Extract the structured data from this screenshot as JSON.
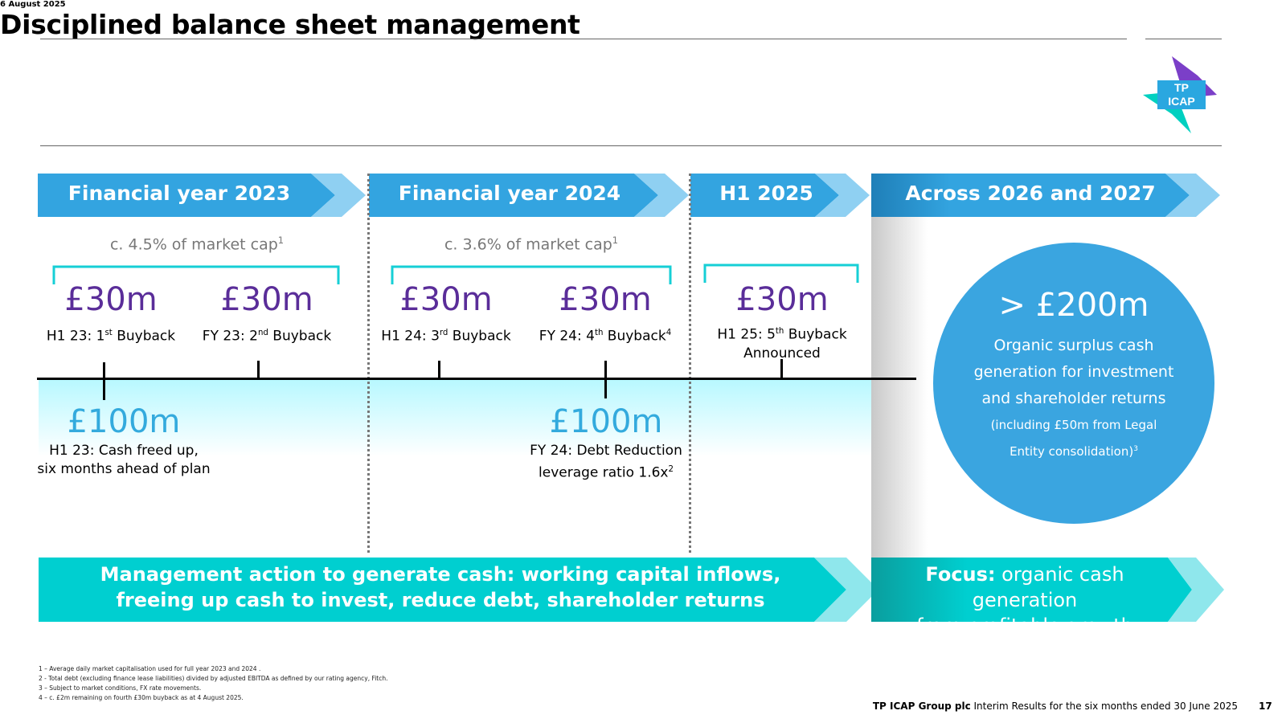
{
  "header": {
    "date": "6 August 2025",
    "title": "Disciplined balance sheet management",
    "logo_text": [
      "TP",
      "ICAP"
    ]
  },
  "periods": [
    {
      "label": "Financial year 2023"
    },
    {
      "label": "Financial year 2024"
    },
    {
      "label": "H1 2025"
    },
    {
      "label": "Across 2026 and 2027"
    }
  ],
  "market_cap": {
    "fy23": {
      "text": "c. 4.5% of market cap",
      "sup": "1"
    },
    "fy24": {
      "text": "c. 3.6% of market cap",
      "sup": "1"
    }
  },
  "buybacks": [
    {
      "amount": "£30m",
      "label": "H1 23: 1",
      "sup": "st",
      "rest": " Buyback"
    },
    {
      "amount": "£30m",
      "label": "FY 23: 2",
      "sup": "nd",
      "rest": " Buyback"
    },
    {
      "amount": "£30m",
      "label": "H1 24: 3",
      "sup": "rd",
      "rest": " Buyback"
    },
    {
      "amount": "£30m",
      "label": "FY 24: 4",
      "sup": "th",
      "rest": " Buyback",
      "note": "4"
    },
    {
      "amount": "£30m",
      "label": "H1 25: 5",
      "sup": "th",
      "rest": " Buyback",
      "line2": "Announced"
    }
  ],
  "cash_events": [
    {
      "amount": "£100m",
      "line1": "H1 23: Cash freed up,",
      "line2": "six months ahead of plan"
    },
    {
      "amount": "£100m",
      "line1": "FY 24: Debt Reduction",
      "line2": "leverage ratio 1.6x",
      "note": "2"
    }
  ],
  "outlook": {
    "amount": "> £200m",
    "lines": [
      "Organic surplus cash",
      "generation for investment",
      "and shareholder returns"
    ],
    "small_lines": [
      "(including £50m from Legal",
      "Entity consolidation)"
    ],
    "note": "3"
  },
  "banner": {
    "left_line1": "Management action  to generate cash: working capital inflows,",
    "left_line2": "freeing up cash to invest, reduce debt, shareholder returns",
    "right_bold": "Focus:",
    "right_rest": " organic cash generation",
    "right_line2": "from profitable growth"
  },
  "footnotes": [
    "1 – Average daily market capitalisation used for full year 2023 and 2024 .",
    "2 - Total debt (excluding finance lease liabilities) divided by adjusted EBITDA as defined by our rating agency, Fitch.",
    "3 – Subject to market conditions, FX rate movements.",
    "4 – c. £2m remaining on fourth £30m buyback as at 4 August 2025."
  ],
  "footer": {
    "company": "TP ICAP Group plc",
    "report": " Interim Results for the six months ended 30 June 2025",
    "page": "17"
  },
  "colors": {
    "header_blue": "#33a4e0",
    "chevron_light": "#8fd0f2",
    "teal": "#00cfd0",
    "purple": "#5a2d99",
    "circle_blue": "#3aa5e0"
  }
}
